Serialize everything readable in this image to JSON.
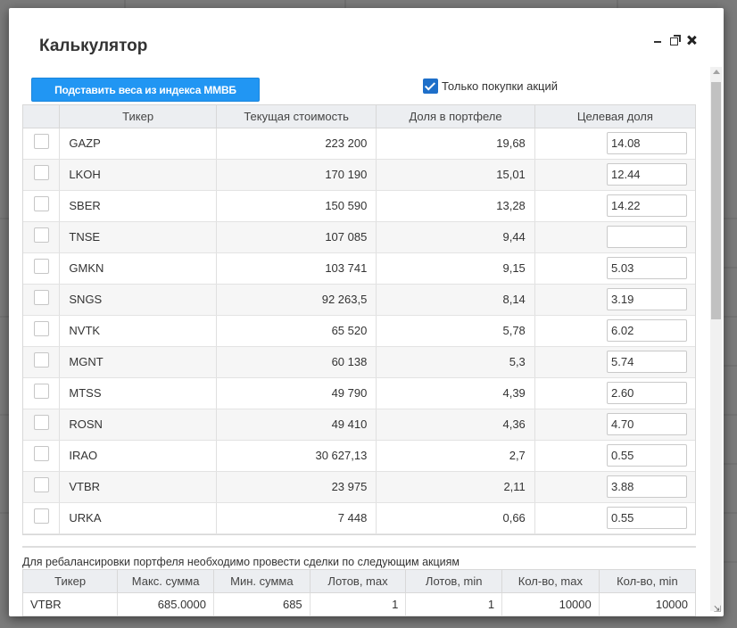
{
  "modal": {
    "title": "Калькулятор",
    "controls": [
      "minimize-icon",
      "popout-icon",
      "close-icon"
    ]
  },
  "actions": {
    "fill_weights_label": "Подставить веса из индекса ММВБ",
    "only_buys_label": "Только покупки акций",
    "only_buys_checked": true
  },
  "portfolio": {
    "headers": [
      "Тикер",
      "Текущая стоимость",
      "Доля в портфеле",
      "Целевая доля"
    ],
    "rows": [
      {
        "ticker": "GAZP",
        "value": "223 200",
        "share": "19,68",
        "target": "14.08"
      },
      {
        "ticker": "LKOH",
        "value": "170 190",
        "share": "15,01",
        "target": "12.44"
      },
      {
        "ticker": "SBER",
        "value": "150 590",
        "share": "13,28",
        "target": "14.22"
      },
      {
        "ticker": "TNSE",
        "value": "107 085",
        "share": "9,44",
        "target": ""
      },
      {
        "ticker": "GMKN",
        "value": "103 741",
        "share": "9,15",
        "target": "5.03"
      },
      {
        "ticker": "SNGS",
        "value": "92 263,5",
        "share": "8,14",
        "target": "3.19"
      },
      {
        "ticker": "NVTK",
        "value": "65 520",
        "share": "5,78",
        "target": "6.02"
      },
      {
        "ticker": "MGNT",
        "value": "60 138",
        "share": "5,3",
        "target": "5.74"
      },
      {
        "ticker": "MTSS",
        "value": "49 790",
        "share": "4,39",
        "target": "2.60"
      },
      {
        "ticker": "ROSN",
        "value": "49 410",
        "share": "4,36",
        "target": "4.70"
      },
      {
        "ticker": "IRAO",
        "value": "30 627,13",
        "share": "2,7",
        "target": "0.55"
      },
      {
        "ticker": "VTBR",
        "value": "23 975",
        "share": "2,11",
        "target": "3.88"
      },
      {
        "ticker": "URKA",
        "value": "7 448",
        "share": "0,66",
        "target": "0.55"
      }
    ]
  },
  "rebalance": {
    "title": "Для ребалансировки портфеля необходимо провести сделки по следующим акциям",
    "headers": [
      "Тикер",
      "Макс. сумма",
      "Мин. сумма",
      "Лотов, max",
      "Лотов, min",
      "Кол-во, max",
      "Кол-во, min"
    ],
    "rows": [
      {
        "ticker": "VTBR",
        "max_sum": "685.0000",
        "min_sum": "685",
        "lots_max": "1",
        "lots_min": "1",
        "qty_max": "10000",
        "qty_min": "10000"
      }
    ]
  }
}
